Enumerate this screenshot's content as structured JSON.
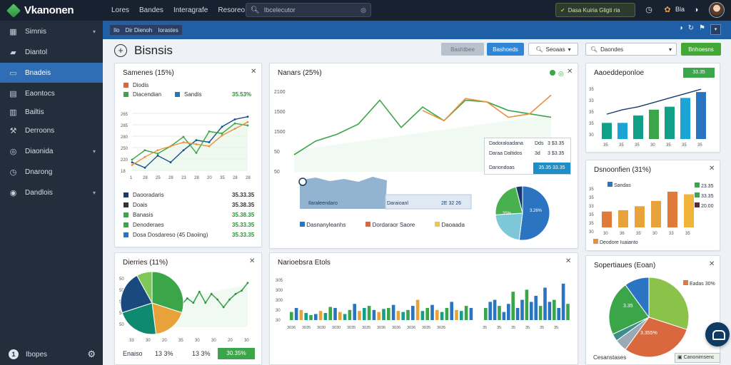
{
  "app": {
    "title": "Vkanonen"
  },
  "topnav": [
    "Lores",
    "Bandes",
    "Interagrafe",
    "Resoreo"
  ],
  "search": {
    "placeholder": "Ibcelecutor"
  },
  "promo": {
    "label": "Dasa Kuiria Gligti ria"
  },
  "user": {
    "label": "Bla"
  },
  "sidebar": {
    "items": [
      {
        "label": "Simnis",
        "icon": "grid-icon",
        "chevron": true
      },
      {
        "label": "Diantol",
        "icon": "car-icon",
        "chevron": false
      },
      {
        "label": "Bnadeis",
        "icon": "chat-icon",
        "chevron": false,
        "active": true
      },
      {
        "label": "Eaontocs",
        "icon": "building-icon",
        "chevron": false
      },
      {
        "label": "Bailtis",
        "icon": "document-icon",
        "chevron": false
      },
      {
        "label": "Derroons",
        "icon": "wrench-icon",
        "chevron": false
      },
      {
        "label": "Diaonida",
        "icon": "globe-icon",
        "chevron": true
      },
      {
        "label": "Dnarong",
        "icon": "clock-icon",
        "chevron": false
      },
      {
        "label": "Dandlois",
        "icon": "circle-icon",
        "chevron": true
      }
    ],
    "footer": {
      "label": "Ibopes"
    }
  },
  "subbar": {
    "crumbs": [
      "Ilo",
      "Dir Dienoh",
      "Iorastes"
    ]
  },
  "header": {
    "title": "Bisnsis",
    "btn_disabled": "Bashtbee",
    "btn_primary": "Bashoeds",
    "select1": "Seoaas",
    "select2": "Daondes",
    "btn_success": "Bnhoesns"
  },
  "colors": {
    "green": "#3aa549",
    "blue": "#2a74c2",
    "orange": "#e8913a",
    "navy": "#173a6d",
    "teal": "#12a089",
    "accent": "#2f6db5"
  },
  "card1": {
    "title": "Samenes (15%)",
    "legend_top": [
      {
        "label": "Diodis",
        "color": "#d9683f"
      },
      {
        "label": "Diacendian",
        "color": "#3aa549"
      },
      {
        "label": "Sandis",
        "color": "#2a74c2"
      }
    ],
    "legend_top_value": "35.53%",
    "ylabels": [
      "265",
      "285",
      "280",
      "250",
      "220",
      "18"
    ],
    "xlabels": [
      "1",
      "28",
      "25",
      "28",
      "23",
      "28",
      "20",
      "35",
      "28",
      "28"
    ],
    "series": [
      {
        "name": "a",
        "color": "#1b4f8a",
        "values": [
          232,
          224,
          242,
          232,
          250,
          265,
          262,
          285,
          296,
          300
        ]
      },
      {
        "name": "b",
        "color": "#3aa549",
        "values": [
          236,
          250,
          245,
          256,
          270,
          246,
          278,
          275,
          290,
          287
        ]
      },
      {
        "name": "c",
        "color": "#e8913a",
        "values": [
          228,
          240,
          250,
          256,
          262,
          259,
          256,
          272,
          282,
          292
        ]
      }
    ],
    "legend_bottom": [
      {
        "label": "Daooradaris",
        "color": "#173a6d",
        "value": "35.33.35"
      },
      {
        "label": "Doais",
        "color": "#333333",
        "value": "35.38.35"
      },
      {
        "label": "Banasis",
        "color": "#3aa549",
        "value": "35.38.35"
      },
      {
        "label": "Denoderaes",
        "color": "#3aa549",
        "value": "35.33.35"
      },
      {
        "label": "Dosa Dosdareso (45 Daoiing)",
        "color": "#2a74c2",
        "value": "35.33.35"
      }
    ]
  },
  "card2": {
    "title": "Nanars (25%)",
    "ylabels": [
      "2100",
      "1500",
      "1500",
      "50",
      "50"
    ],
    "series": [
      {
        "name": "green",
        "color": "#3aa549",
        "values": [
          50,
          90,
          110,
          140,
          210,
          130,
          190,
          150,
          210,
          205,
          180,
          170,
          160
        ]
      },
      {
        "name": "orange",
        "color": "#e8913a",
        "values": [
          null,
          null,
          null,
          null,
          null,
          null,
          180,
          150,
          215,
          205,
          160,
          170,
          225
        ]
      }
    ],
    "area_label": "Ilaraleendaro",
    "area_label2": "Daraioanl",
    "area_value": "2E 32 26",
    "table": [
      {
        "label": "Dadoraloadana",
        "a": "Dds",
        "b": "3 $3.35"
      },
      {
        "label": "Daraa Daltidos",
        "a": "3d",
        "b": "3 $3.35"
      },
      {
        "label": "Danondoas",
        "a": "",
        "b": ""
      }
    ],
    "table_highlight": "35.35 33.35",
    "pie": [
      {
        "label": "a",
        "value": 52,
        "color": "#2a74c2"
      },
      {
        "label": "b",
        "value": 22,
        "color": "#7cc8d8"
      },
      {
        "label": "c",
        "value": 22,
        "color": "#49b04f"
      },
      {
        "label": "d",
        "value": 4,
        "color": "#173a6d"
      }
    ],
    "pie_labels": [
      "3.26%",
      "35%"
    ],
    "legend": [
      {
        "label": "Dasnanyleanhs",
        "color": "#2a74c2"
      },
      {
        "label": "Dordaraor Saore",
        "color": "#d9683f"
      },
      {
        "label": "Daoaada",
        "color": "#e8c94a"
      }
    ]
  },
  "card3": {
    "title": "Aaoeddeponloe",
    "badge": "33.35",
    "ylabels": [
      "35",
      "33",
      "35",
      "35",
      "30"
    ],
    "xlabels": [
      "35",
      "35",
      "35",
      "30",
      "35",
      "35",
      "35"
    ],
    "bars": [
      {
        "value": 11,
        "color": "#12a089"
      },
      {
        "value": 11,
        "color": "#1aa5d6"
      },
      {
        "value": 16,
        "color": "#12a089"
      },
      {
        "value": 20,
        "color": "#3aa549"
      },
      {
        "value": 22,
        "color": "#12a089"
      },
      {
        "value": 28,
        "color": "#1aa5d6"
      },
      {
        "value": 32,
        "color": "#2a74c2"
      }
    ],
    "trend": [
      15,
      18,
      20,
      23,
      26,
      29,
      32
    ]
  },
  "card4": {
    "title": "Dsnoonfien (31%)",
    "ylabels": [
      "35",
      "35",
      "33",
      "35",
      "35",
      "30"
    ],
    "xlabels": [
      "30",
      "36",
      "35",
      "30",
      "33",
      "35"
    ],
    "bars": [
      {
        "value": 12,
        "color": "#e07a3b"
      },
      {
        "value": 13,
        "color": "#e8a23a"
      },
      {
        "value": 16,
        "color": "#e8a23a"
      },
      {
        "value": 20,
        "color": "#e8a23a"
      },
      {
        "value": 27,
        "color": "#e07a3b"
      },
      {
        "value": 25,
        "color": "#f0b43a"
      }
    ],
    "legend": [
      {
        "label": "Sandas",
        "color": "#2a74c2"
      }
    ],
    "right_legend": [
      {
        "label": "23.35",
        "color": "#3aa549"
      },
      {
        "label": "33.35",
        "color": "#3aa549"
      },
      {
        "label": "20.00",
        "color": "#5a2a3a"
      }
    ],
    "footer": "Deodore Iuaianto"
  },
  "card5": {
    "title": "Dierries (11%)",
    "ylabels": [
      "50",
      "50",
      "50",
      "50",
      "50"
    ],
    "xlabels": [
      "33",
      "30",
      "20",
      "35",
      "30",
      "30",
      "20",
      "30"
    ],
    "pie": [
      {
        "label": "a",
        "value": 30,
        "color": "#3aa549"
      },
      {
        "label": "b",
        "value": 18,
        "color": "#e8a23a"
      },
      {
        "label": "c",
        "value": 22,
        "color": "#0d8a6f"
      },
      {
        "label": "d",
        "value": 22,
        "color": "#1a4a7d"
      },
      {
        "label": "e",
        "value": 8,
        "color": "#7ec85a"
      }
    ],
    "line": [
      18,
      15,
      20,
      26,
      22,
      32,
      22,
      30,
      25,
      18,
      25,
      30,
      33,
      40
    ],
    "footer_label": "Enaiso",
    "footer_v1": "13 3%",
    "footer_v2": "13 3%",
    "footer_btn": "30.35%"
  },
  "card6": {
    "title": "Narioebsra Etols",
    "ylabels": [
      "305",
      "300",
      "300",
      "30",
      "30"
    ],
    "xlabels": [
      "3036",
      "3035",
      "3030",
      "3030",
      "3035",
      "3035",
      "3036",
      "3036",
      "3036",
      "3035",
      "3035"
    ],
    "bars_left": [
      8,
      12,
      10,
      7,
      5,
      6,
      9,
      7,
      13,
      12,
      8,
      6,
      10,
      16,
      9,
      12,
      14,
      10,
      8,
      11,
      12,
      15,
      9,
      8,
      10,
      14,
      20,
      9,
      12,
      15,
      10,
      8,
      12,
      18,
      10,
      9,
      14,
      12
    ],
    "bars_right": [
      12,
      18,
      20,
      14,
      8,
      16,
      28,
      12,
      20,
      30,
      18,
      24,
      14,
      32,
      18,
      20,
      12,
      36,
      16
    ],
    "xlabels_right": [
      "35",
      "35",
      "35",
      "35",
      "35",
      "35"
    ]
  },
  "card7": {
    "title": "Sopertiaues (Eoan)",
    "legend": [
      {
        "label": "Eadas",
        "value": "30%",
        "color": "#e07a3b"
      }
    ],
    "pie": [
      {
        "label": "a",
        "value": 30,
        "color": "#8bc34a"
      },
      {
        "label": "b",
        "value": 30,
        "color": "#d9683f"
      },
      {
        "label": "c",
        "value": 5,
        "color": "#9aa9b5"
      },
      {
        "label": "d",
        "value": 3,
        "color": "#3a8f8a"
      },
      {
        "label": "e",
        "value": 22,
        "color": "#3aa549"
      },
      {
        "label": "f",
        "value": 10,
        "color": "#2a74c2"
      }
    ],
    "pie_labels": [
      "3.35",
      "3.355%"
    ],
    "footer": "Cesanstases",
    "chat_label": "Canonimsenc"
  }
}
